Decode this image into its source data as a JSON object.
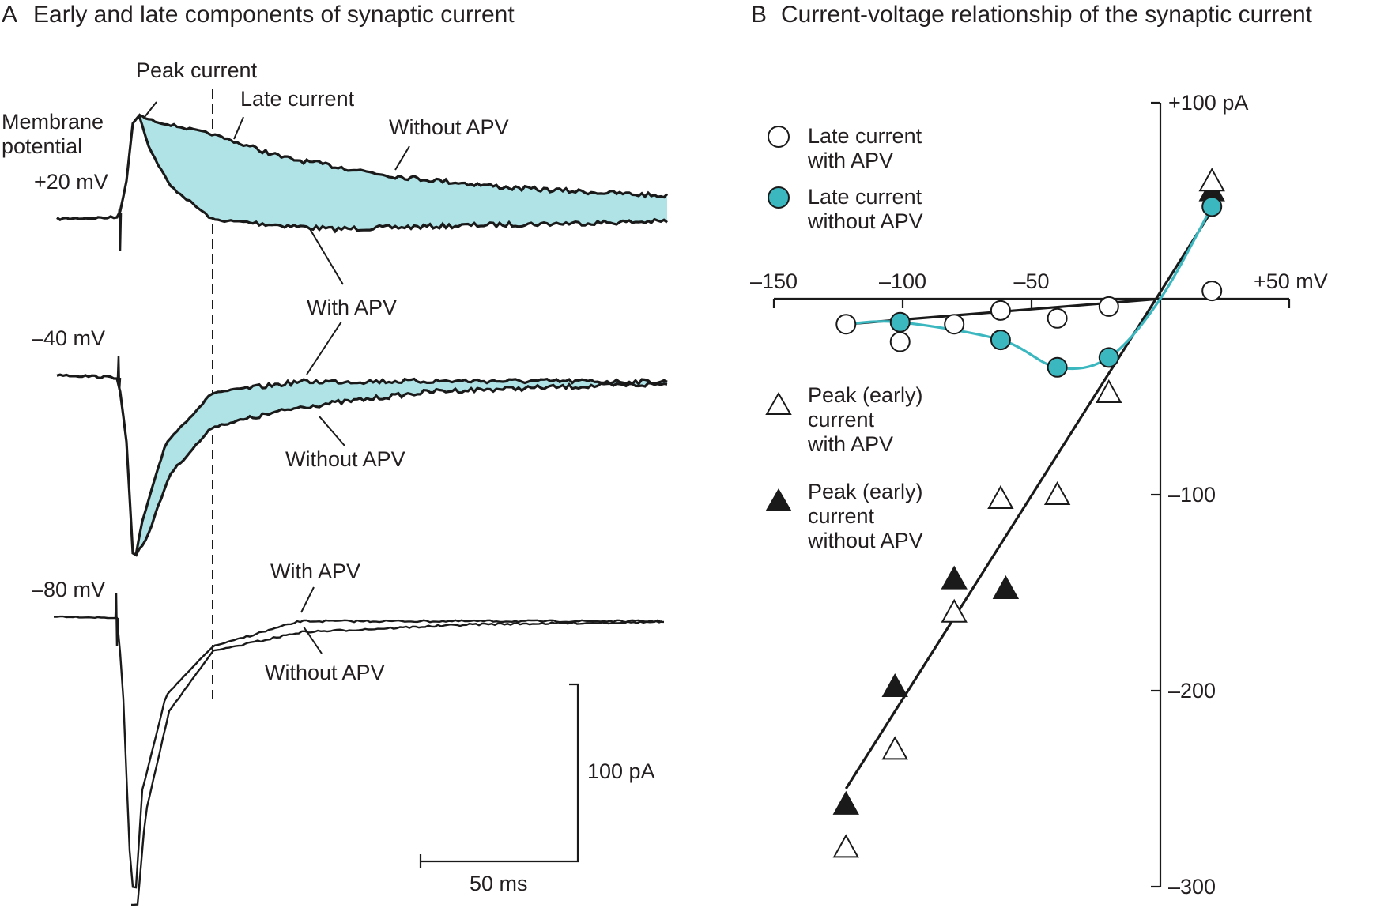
{
  "panel_a": {
    "letter": "A",
    "title": "Early and late components of synaptic current",
    "fill_color": "#b0e3e6",
    "trace_color": "#1a1a1a",
    "traces": [
      {
        "holding": "+20 mV",
        "with_apv": "With APV",
        "without_apv": "Without APV",
        "peak_label": "Peak current",
        "late_label": "Late current",
        "membrane_label_1": "Membrane",
        "membrane_label_2": "potential"
      },
      {
        "holding": "–40 mV",
        "with_apv": "With APV",
        "without_apv": "Without APV"
      },
      {
        "holding": "–80 mV",
        "with_apv": "With APV",
        "without_apv": "Without APV"
      }
    ],
    "scale_bar": {
      "current": "100 pA",
      "time": "50 ms"
    }
  },
  "chart_data": {
    "type": "scatter",
    "letter": "B",
    "title": "Current-voltage relationship of the synaptic current",
    "xlim": [
      -150,
      50
    ],
    "ylim": [
      -300,
      100
    ],
    "x_ticks": [
      {
        "value": -150,
        "label": "–150"
      },
      {
        "value": -100,
        "label": "–100"
      },
      {
        "value": -50,
        "label": "–50"
      },
      {
        "value": 50,
        "label": "+50 mV"
      }
    ],
    "y_ticks": [
      {
        "value": 100,
        "label": "+100 pA"
      },
      {
        "value": -100,
        "label": "–100"
      },
      {
        "value": -200,
        "label": "–200"
      },
      {
        "value": -300,
        "label": "–300"
      }
    ],
    "grid": false,
    "legend_position": "left",
    "series": [
      {
        "name": "Late current with APV",
        "legend_lines": [
          "Late current",
          "with APV"
        ],
        "marker": "open-circle",
        "color": "#1a1a1a",
        "x": [
          -122,
          -101,
          -80,
          -62,
          -40,
          -20,
          20
        ],
        "y": [
          -13,
          -22,
          -13,
          -6,
          -10,
          -4,
          4
        ]
      },
      {
        "name": "Late current without APV",
        "legend_lines": [
          "Late current",
          "without APV"
        ],
        "marker": "filled-circle",
        "color": "#3bb7c0",
        "x": [
          -101,
          -62,
          -40,
          -20,
          20
        ],
        "y": [
          -12,
          -21,
          -35,
          -30,
          47
        ]
      },
      {
        "name": "Peak (early) current with APV",
        "legend_lines": [
          "Peak (early)",
          "current",
          "with APV"
        ],
        "marker": "open-triangle",
        "color": "#1a1a1a",
        "x": [
          20,
          -20,
          -40,
          -62,
          -80,
          -103,
          -122
        ],
        "y": [
          60,
          -48,
          -100,
          -102,
          -160,
          -230,
          -280
        ]
      },
      {
        "name": "Peak (early) current without APV",
        "legend_lines": [
          "Peak (early)",
          "current",
          "without APV"
        ],
        "marker": "filled-triangle",
        "color": "#1a1a1a",
        "x": [
          20,
          -60,
          -80,
          -103,
          -122
        ],
        "y": [
          55,
          -148,
          -143,
          -198,
          -258
        ]
      }
    ],
    "fit_lines": [
      {
        "name": "late-with-apv-fit",
        "x": [
          -122,
          0
        ],
        "y": [
          -13,
          0
        ]
      },
      {
        "name": "peak-fit",
        "x": [
          -122,
          20
        ],
        "y": [
          -250,
          45
        ]
      }
    ]
  }
}
